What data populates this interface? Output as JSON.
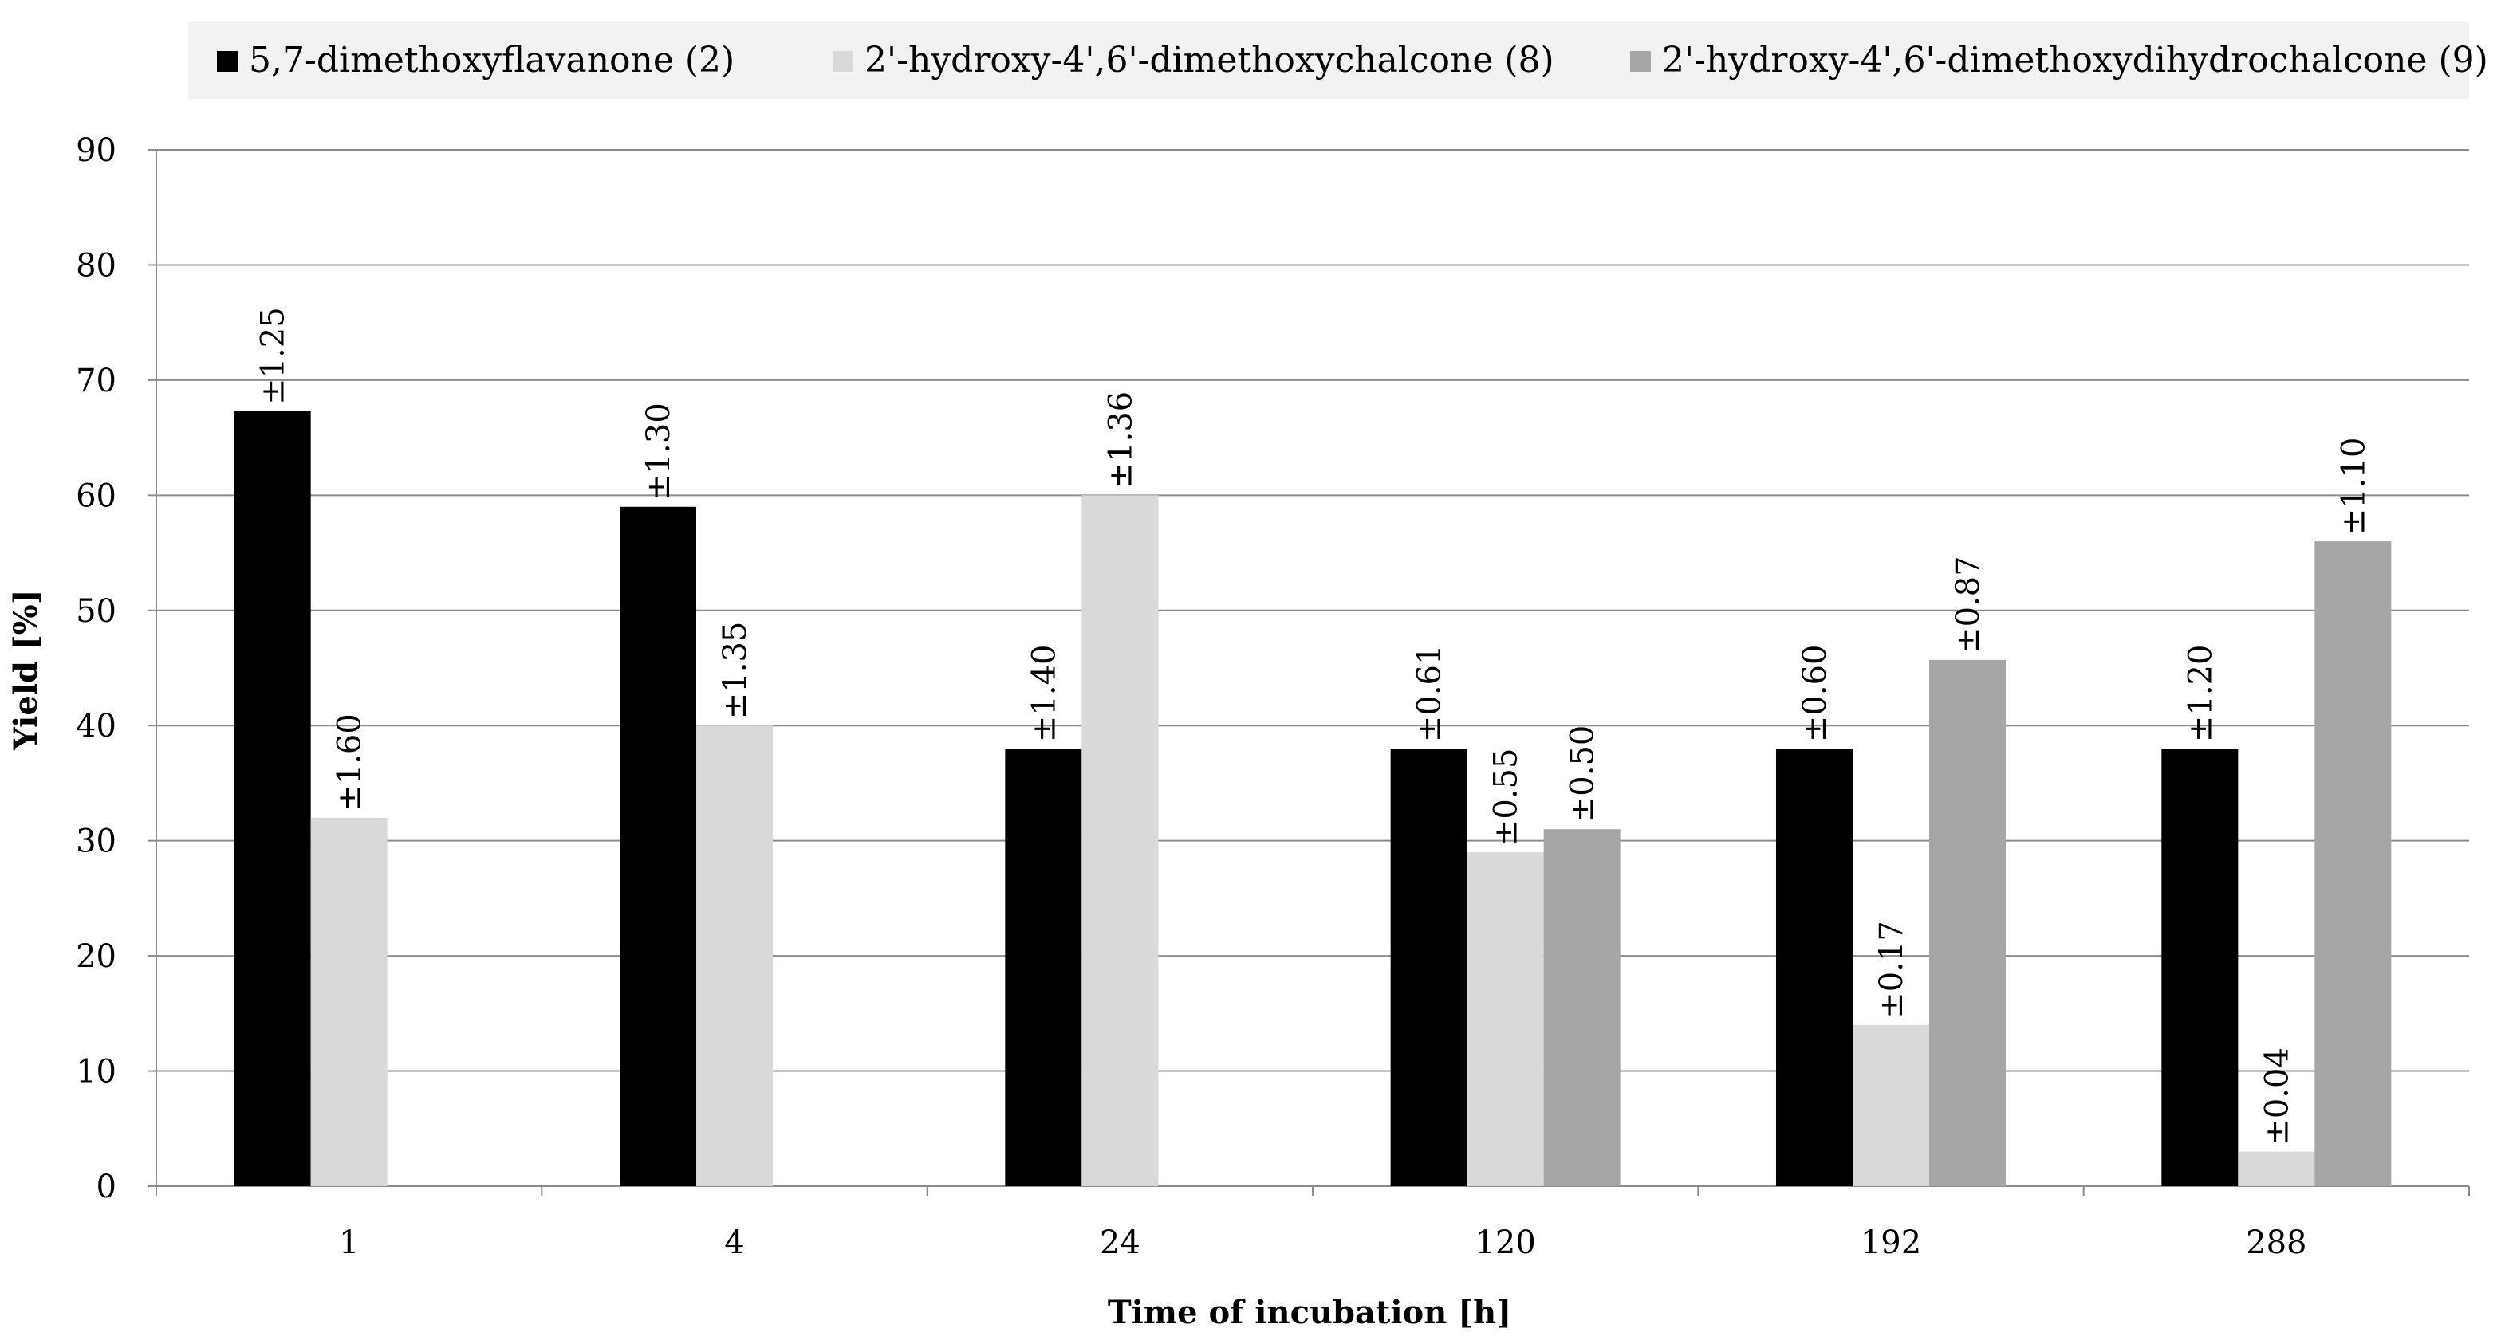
{
  "chart_data": {
    "type": "bar",
    "xlabel": "Time of incubation [h]",
    "ylabel": "Yield [%]",
    "ylim": [
      0,
      90
    ],
    "yticks": [
      0,
      10,
      20,
      30,
      40,
      50,
      60,
      70,
      80,
      90
    ],
    "grid": true,
    "legend_position": "top",
    "categories": [
      "1",
      "4",
      "24",
      "120",
      "192",
      "288"
    ],
    "series": [
      {
        "name": "5,7-dimethoxyflavanone (2)",
        "color": "#000000",
        "values": [
          67.3,
          59.0,
          38.0,
          38.0,
          38.0,
          38.0
        ],
        "error_labels": [
          "±1.25",
          "±1.30",
          "±1.40",
          "±0.61",
          "±0.60",
          "±1.20"
        ]
      },
      {
        "name": "2'-hydroxy-4',6'-dimethoxychalcone (8)",
        "color": "#d9d9d9",
        "values": [
          32.0,
          40.0,
          60.0,
          29.0,
          14.0,
          3.0
        ],
        "error_labels": [
          "±1.60",
          "±1.35",
          "±1.36",
          "±0.55",
          "±0.17",
          "±0.04"
        ]
      },
      {
        "name": "2'-hydroxy-4',6'-dimethoxydihydrochalcone (9)",
        "color": "#a6a6a6",
        "values": [
          null,
          null,
          null,
          31.0,
          45.7,
          56.0
        ],
        "error_labels": [
          null,
          null,
          null,
          "±0.50",
          "±0.87",
          "±1.10"
        ]
      }
    ]
  }
}
